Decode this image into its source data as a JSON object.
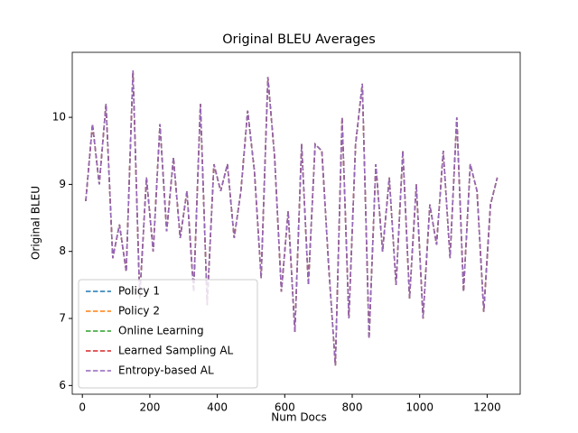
{
  "chart_data": {
    "type": "line",
    "title": "Original BLEU Averages",
    "xlabel": "Num Docs",
    "ylabel": "Original BLEU",
    "x": [
      10,
      30,
      50,
      70,
      90,
      110,
      130,
      150,
      170,
      190,
      210,
      230,
      250,
      270,
      290,
      310,
      330,
      350,
      370,
      390,
      410,
      430,
      450,
      470,
      490,
      510,
      530,
      550,
      570,
      590,
      610,
      630,
      650,
      670,
      690,
      710,
      730,
      750,
      770,
      790,
      810,
      830,
      850,
      870,
      890,
      910,
      930,
      950,
      970,
      990,
      1010,
      1030,
      1050,
      1070,
      1090,
      1110,
      1130,
      1150,
      1170,
      1190,
      1210,
      1230
    ],
    "series": [
      {
        "name": "Policy 1",
        "color": "#1f77b4",
        "values": [
          8.75,
          9.9,
          9.0,
          10.2,
          7.9,
          8.4,
          7.7,
          10.7,
          7.3,
          9.1,
          8.0,
          9.9,
          8.3,
          9.4,
          8.2,
          8.9,
          7.4,
          10.2,
          7.2,
          9.3,
          8.9,
          9.3,
          8.2,
          8.9,
          10.1,
          9.2,
          7.6,
          10.6,
          9.4,
          7.4,
          8.6,
          6.8,
          9.6,
          7.5,
          9.6,
          9.5,
          7.8,
          6.3,
          10.0,
          7.0,
          9.6,
          10.5,
          6.7,
          9.3,
          8.0,
          9.1,
          7.5,
          9.5,
          7.3,
          9.0,
          7.0,
          8.7,
          8.1,
          9.5,
          7.9,
          10.0,
          7.4,
          9.3,
          8.9,
          7.1,
          8.7,
          9.1
        ]
      },
      {
        "name": "Policy 2",
        "color": "#ff7f0e",
        "values": [
          8.75,
          9.9,
          9.0,
          10.2,
          7.9,
          8.4,
          7.7,
          10.7,
          7.3,
          9.1,
          8.0,
          9.9,
          8.3,
          9.4,
          8.2,
          8.9,
          7.4,
          10.2,
          7.2,
          9.3,
          8.9,
          9.3,
          8.2,
          8.9,
          10.1,
          9.2,
          7.6,
          10.6,
          9.4,
          7.4,
          8.6,
          6.8,
          9.6,
          7.5,
          9.6,
          9.5,
          7.8,
          6.3,
          10.0,
          7.0,
          9.6,
          10.5,
          6.7,
          9.3,
          8.0,
          9.1,
          7.5,
          9.5,
          7.3,
          9.0,
          7.0,
          8.7,
          8.1,
          9.5,
          7.9,
          10.0,
          7.4,
          9.3,
          8.9,
          7.1,
          8.7,
          9.1
        ]
      },
      {
        "name": "Online Learning",
        "color": "#2ca02c",
        "values": [
          8.75,
          9.9,
          9.0,
          10.2,
          7.9,
          8.4,
          7.7,
          10.7,
          7.3,
          9.1,
          8.0,
          9.9,
          8.3,
          9.4,
          8.2,
          8.9,
          7.4,
          10.2,
          7.2,
          9.3,
          8.9,
          9.3,
          8.2,
          8.9,
          10.1,
          9.2,
          7.6,
          10.6,
          9.4,
          7.4,
          8.6,
          6.8,
          9.6,
          7.5,
          9.6,
          9.5,
          7.8,
          6.3,
          10.0,
          7.0,
          9.6,
          10.5,
          6.7,
          9.3,
          8.0,
          9.1,
          7.5,
          9.5,
          7.3,
          9.0,
          7.0,
          8.7,
          8.1,
          9.5,
          7.9,
          10.0,
          7.4,
          9.3,
          8.9,
          7.1,
          8.7,
          9.1
        ]
      },
      {
        "name": "Learned Sampling AL",
        "color": "#d62728",
        "values": [
          8.75,
          9.9,
          9.0,
          10.2,
          7.9,
          8.4,
          7.7,
          10.7,
          7.3,
          9.1,
          8.0,
          9.9,
          8.3,
          9.4,
          8.2,
          8.9,
          7.4,
          10.2,
          7.2,
          9.3,
          8.9,
          9.3,
          8.2,
          8.9,
          10.1,
          9.2,
          7.6,
          10.6,
          9.4,
          7.4,
          8.6,
          6.8,
          9.6,
          7.5,
          9.6,
          9.5,
          7.8,
          6.3,
          10.0,
          7.0,
          9.6,
          10.5,
          6.7,
          9.3,
          8.0,
          9.1,
          7.5,
          9.5,
          7.3,
          9.0,
          7.0,
          8.7,
          8.1,
          9.5,
          7.9,
          10.0,
          7.4,
          9.3,
          8.9,
          7.1,
          8.7,
          9.1
        ]
      },
      {
        "name": "Entropy-based AL",
        "color": "#9467bd",
        "values": [
          8.75,
          9.9,
          9.0,
          10.2,
          7.9,
          8.4,
          7.7,
          10.7,
          7.3,
          9.1,
          8.0,
          9.9,
          8.3,
          9.4,
          8.2,
          8.9,
          7.4,
          10.2,
          7.2,
          9.3,
          8.9,
          9.3,
          8.2,
          8.9,
          10.1,
          9.2,
          7.6,
          10.6,
          9.4,
          7.4,
          8.6,
          6.8,
          9.6,
          7.5,
          9.6,
          9.5,
          7.8,
          6.3,
          10.0,
          7.0,
          9.6,
          10.5,
          6.7,
          9.3,
          8.0,
          9.1,
          7.5,
          9.5,
          7.3,
          9.0,
          7.0,
          8.7,
          8.1,
          9.5,
          7.9,
          10.0,
          7.4,
          9.3,
          8.9,
          7.1,
          8.7,
          9.1
        ]
      }
    ],
    "xlim": [
      -30,
      1298
    ],
    "ylim": [
      5.87,
      10.97
    ],
    "xticks": [
      0,
      200,
      400,
      600,
      800,
      1000,
      1200
    ],
    "yticks": [
      6,
      7,
      8,
      9,
      10
    ],
    "legend": "lower left"
  }
}
